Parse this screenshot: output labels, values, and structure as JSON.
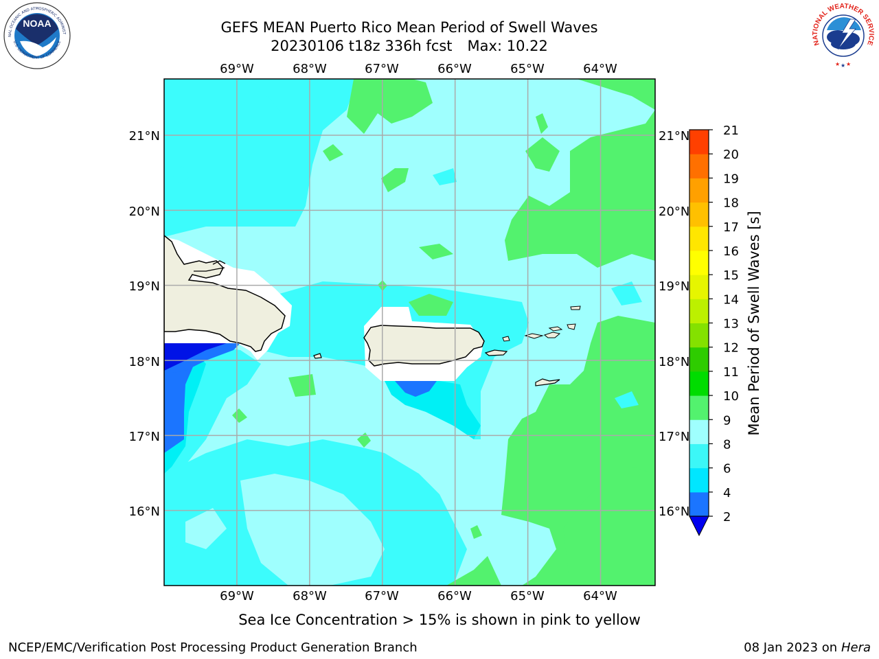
{
  "header": {
    "title_line1": "GEFS MEAN Puerto Rico Mean Period of Swell Waves",
    "title_run": "20230106 t18z 336h fcst",
    "title_max": "Max: 10.22"
  },
  "logos": {
    "left": {
      "name": "NOAA",
      "ring_text": "NATIONAL OCEANIC AND ATMOSPHERIC ADMINISTRATION",
      "ring_text_bottom": "U.S. DEPARTMENT OF COMMERCE"
    },
    "right": {
      "name": "NATIONAL WEATHER SERVICE"
    }
  },
  "map": {
    "lon_labels": [
      "69°W",
      "68°W",
      "67°W",
      "66°W",
      "65°W",
      "64°W"
    ],
    "lat_labels": [
      "21°N",
      "20°N",
      "19°N",
      "18°N",
      "17°N",
      "16°N"
    ],
    "extent": {
      "lon_min": -70.0,
      "lon_max": -63.25,
      "lat_min": 15.0,
      "lat_max": 21.75
    },
    "grid": true,
    "palette": {
      "ocean_light": "#9ffffe",
      "ocean_mid": "#3cfcfc",
      "ocean_cyan": "#00f0f5",
      "swell_green": "#53f26e",
      "land": "#efefdf",
      "deep_blue": "#1b75ff",
      "darkest_blue": "#0013e6"
    }
  },
  "colorbar": {
    "label": "Mean Period of Swell Waves [s]",
    "ticks": [
      "2",
      "4",
      "6",
      "8",
      "9",
      "10",
      "11",
      "12",
      "13",
      "14",
      "15",
      "16",
      "17",
      "18",
      "19",
      "20",
      "21"
    ],
    "colors": [
      "#1b75ff",
      "#00e6ff",
      "#3cf7f7",
      "#9ffffe",
      "#53f26e",
      "#00dc00",
      "#2ecc00",
      "#84e100",
      "#bcf000",
      "#e6f500",
      "#ffff00",
      "#ffe600",
      "#ffc000",
      "#ffa000",
      "#ff7000",
      "#ff4000",
      "#ff0000"
    ],
    "under_color": "#0000ee"
  },
  "caption": "Sea Ice Concentration > 15% is shown in pink to yellow",
  "footer": {
    "left": "NCEP/EMC/Verification Post Processing Product Generation Branch",
    "right_date": "08 Jan 2023 on ",
    "right_host": "Hera"
  }
}
